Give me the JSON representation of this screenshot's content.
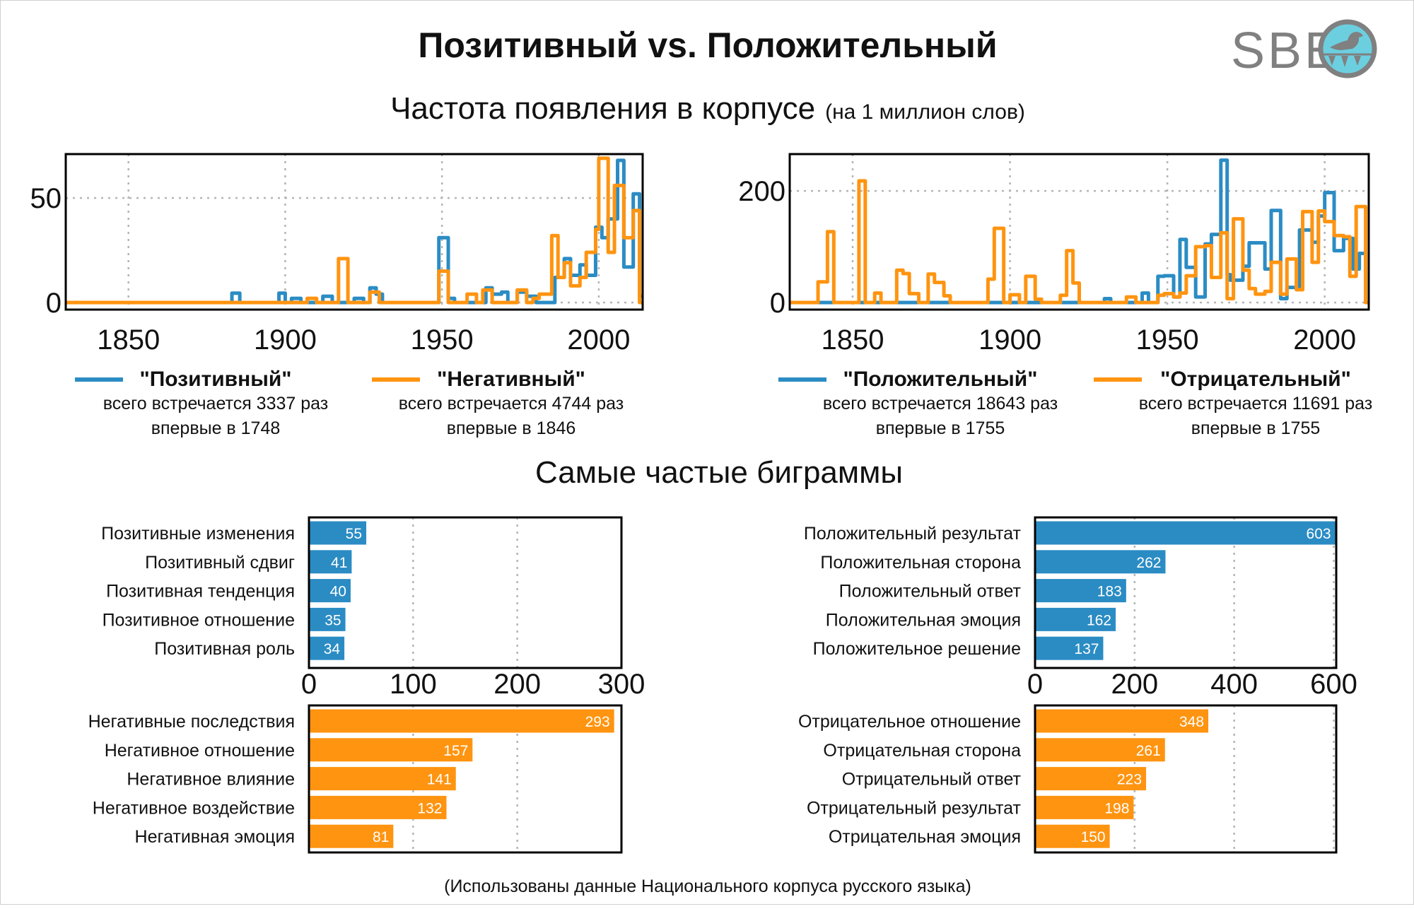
{
  "header": {
    "title": "Позитивный vs. Положительный",
    "logo_text": "SBE"
  },
  "frequency_section": {
    "title": "Частота появления в корпусе",
    "title_note": "(на 1 миллион слов)"
  },
  "bigram_section": {
    "title": "Самые частые биграммы"
  },
  "footer": "(Использованы данные Национального корпуса русского языка)",
  "colors": {
    "blue": "#2b8cc4",
    "orange": "#ff9410",
    "logo_gray": "#808080",
    "logo_cyan": "#6ccfe0"
  },
  "chart_data": [
    {
      "type": "line",
      "step": true,
      "xlim": [
        1830,
        2014
      ],
      "ylim": [
        0,
        71
      ],
      "xticks": [
        "1850",
        "1900",
        "1950",
        "2000"
      ],
      "xtick_values": [
        1850,
        1900,
        1950,
        2000
      ],
      "yticks": [
        "0",
        "50"
      ],
      "ytick_values": [
        0,
        50
      ],
      "grid": true,
      "x_end": 2014,
      "legend": [
        {
          "name": "\"Позитивный\"",
          "line1": "всего встречается 3337 раз",
          "line2": "впервые в 1748"
        },
        {
          "name": "\"Негативный\"",
          "line1": "всего встречается 4744 раз",
          "line2": "впервые в 1846"
        }
      ],
      "series": [
        {
          "name": "Позитивный",
          "color": "blue",
          "steps": [
            [
              1830,
              0
            ],
            [
              1883,
              4.5
            ],
            [
              1885.5,
              0
            ],
            [
              1898,
              4.5
            ],
            [
              1900,
              0
            ],
            [
              1902,
              2
            ],
            [
              1905,
              0
            ],
            [
              1912,
              3
            ],
            [
              1915,
              0
            ],
            [
              1922,
              2
            ],
            [
              1925,
              0
            ],
            [
              1927,
              7
            ],
            [
              1929,
              4
            ],
            [
              1931,
              0
            ],
            [
              1949,
              31
            ],
            [
              1952,
              2
            ],
            [
              1954,
              0
            ],
            [
              1964,
              7
            ],
            [
              1966,
              4
            ],
            [
              1969,
              5
            ],
            [
              1971,
              0
            ],
            [
              1974,
              5
            ],
            [
              1977,
              3
            ],
            [
              1980,
              0
            ],
            [
              1986,
              12
            ],
            [
              1989,
              21
            ],
            [
              1991,
              13
            ],
            [
              1994,
              18
            ],
            [
              1996,
              13
            ],
            [
              1999,
              36
            ],
            [
              2001,
              31
            ],
            [
              2003,
              40
            ],
            [
              2006,
              68
            ],
            [
              2008,
              17
            ],
            [
              2011,
              52
            ],
            [
              2013,
              3
            ]
          ]
        },
        {
          "name": "Негативный",
          "color": "orange",
          "steps": [
            [
              1830,
              0
            ],
            [
              1907,
              2
            ],
            [
              1910,
              0
            ],
            [
              1917,
              21
            ],
            [
              1920,
              0
            ],
            [
              1927,
              5
            ],
            [
              1930,
              0
            ],
            [
              1949,
              15
            ],
            [
              1952,
              0
            ],
            [
              1958,
              4
            ],
            [
              1961,
              0
            ],
            [
              1963,
              6
            ],
            [
              1966,
              0
            ],
            [
              1974,
              6
            ],
            [
              1977,
              0
            ],
            [
              1979,
              2
            ],
            [
              1981,
              4
            ],
            [
              1985,
              32
            ],
            [
              1987,
              12
            ],
            [
              1989,
              19
            ],
            [
              1991,
              8
            ],
            [
              1994,
              12
            ],
            [
              1996,
              24
            ],
            [
              1999,
              35
            ],
            [
              2000,
              69
            ],
            [
              2003,
              24
            ],
            [
              2005,
              56
            ],
            [
              2008,
              31
            ],
            [
              2011,
              44
            ],
            [
              2013,
              0
            ]
          ]
        }
      ]
    },
    {
      "type": "line",
      "step": true,
      "xlim": [
        1830,
        2014
      ],
      "ylim": [
        0,
        266
      ],
      "xticks": [
        "1850",
        "1900",
        "1950",
        "2000"
      ],
      "xtick_values": [
        1850,
        1900,
        1950,
        2000
      ],
      "yticks": [
        "0",
        "200"
      ],
      "ytick_values": [
        0,
        200
      ],
      "grid": true,
      "x_end": 2014,
      "legend": [
        {
          "name": "\"Положительный\"",
          "line1": "всего встречается 18643 раз",
          "line2": "впервые в 1755"
        },
        {
          "name": "\"Отрицательный\"",
          "line1": "всего встречается 11691 раз",
          "line2": "впервые в 1755"
        }
      ],
      "series": [
        {
          "name": "Положительный",
          "color": "blue",
          "steps": [
            [
              1830,
              0
            ],
            [
              1930,
              7
            ],
            [
              1932,
              0
            ],
            [
              1942,
              17
            ],
            [
              1944,
              0
            ],
            [
              1947,
              47
            ],
            [
              1949,
              48
            ],
            [
              1952,
              10
            ],
            [
              1954,
              113
            ],
            [
              1956,
              63
            ],
            [
              1959,
              10
            ],
            [
              1962,
              105
            ],
            [
              1964,
              122
            ],
            [
              1967,
              255
            ],
            [
              1969,
              50
            ],
            [
              1970,
              40
            ],
            [
              1974,
              65
            ],
            [
              1976,
              107
            ],
            [
              1981,
              60
            ],
            [
              1983,
              165
            ],
            [
              1986,
              7
            ],
            [
              1988,
              27
            ],
            [
              1992,
              130
            ],
            [
              1996,
              108
            ],
            [
              1998,
              155
            ],
            [
              2000,
              197
            ],
            [
              2003,
              93
            ],
            [
              2006,
              115
            ],
            [
              2009,
              60
            ],
            [
              2011,
              88
            ],
            [
              2013,
              0
            ]
          ]
        },
        {
          "name": "Отрицательный",
          "color": "orange",
          "steps": [
            [
              1830,
              0
            ],
            [
              1839,
              37
            ],
            [
              1842,
              127
            ],
            [
              1844,
              0
            ],
            [
              1852,
              218
            ],
            [
              1854,
              0
            ],
            [
              1857,
              17
            ],
            [
              1859,
              0
            ],
            [
              1864,
              58
            ],
            [
              1866,
              52
            ],
            [
              1868,
              16
            ],
            [
              1871,
              0
            ],
            [
              1874,
              51
            ],
            [
              1876,
              36
            ],
            [
              1879,
              12
            ],
            [
              1881,
              0
            ],
            [
              1893,
              42
            ],
            [
              1895,
              133
            ],
            [
              1898,
              0
            ],
            [
              1900,
              14
            ],
            [
              1903,
              0
            ],
            [
              1905,
              47
            ],
            [
              1908,
              6
            ],
            [
              1910,
              0
            ],
            [
              1916,
              13
            ],
            [
              1918,
              93
            ],
            [
              1920,
              35
            ],
            [
              1922,
              0
            ],
            [
              1937,
              10
            ],
            [
              1940,
              0
            ],
            [
              1947,
              13
            ],
            [
              1949,
              16
            ],
            [
              1952,
              10
            ],
            [
              1954,
              17
            ],
            [
              1956,
              48
            ],
            [
              1959,
              100
            ],
            [
              1962,
              102
            ],
            [
              1964,
              45
            ],
            [
              1967,
              125
            ],
            [
              1969,
              7
            ],
            [
              1971,
              150
            ],
            [
              1974,
              58
            ],
            [
              1976,
              25
            ],
            [
              1978,
              15
            ],
            [
              1981,
              20
            ],
            [
              1983,
              72
            ],
            [
              1986,
              15
            ],
            [
              1988,
              78
            ],
            [
              1991,
              23
            ],
            [
              1993,
              163
            ],
            [
              1996,
              72
            ],
            [
              1998,
              164
            ],
            [
              2000,
              145
            ],
            [
              2003,
              120
            ],
            [
              2006,
              118
            ],
            [
              2008,
              47
            ],
            [
              2010,
              172
            ],
            [
              2013,
              0
            ]
          ]
        }
      ]
    },
    {
      "type": "bar",
      "orientation": "horizontal",
      "color": "blue",
      "xlim": [
        0,
        300
      ],
      "xticks": [
        "0",
        "100",
        "200",
        "300"
      ],
      "xtick_values": [
        0,
        100,
        200,
        300
      ],
      "categories": [
        "Позитивные изменения",
        "Позитивный сдвиг",
        "Позитивная тенденция",
        "Позитивное отношение",
        "Позитивная роль"
      ],
      "values": [
        55,
        41,
        40,
        35,
        34
      ]
    },
    {
      "type": "bar",
      "orientation": "horizontal",
      "color": "orange",
      "xlim": [
        0,
        300
      ],
      "xtick_values": [
        100,
        200
      ],
      "categories": [
        "Негативные последствия",
        "Негативное отношение",
        "Негативное влияние",
        "Негативное воздействие",
        "Негативная эмоция"
      ],
      "values": [
        293,
        157,
        141,
        132,
        81
      ]
    },
    {
      "type": "bar",
      "orientation": "horizontal",
      "color": "blue",
      "xlim": [
        0,
        605
      ],
      "xticks": [
        "0",
        "200",
        "400",
        "600"
      ],
      "xtick_values": [
        0,
        200,
        400,
        600
      ],
      "categories": [
        "Положительный результат",
        "Положительная сторона",
        "Положительный ответ",
        "Положительная эмоция",
        "Положительное решение"
      ],
      "values": [
        603,
        262,
        183,
        162,
        137
      ]
    },
    {
      "type": "bar",
      "orientation": "horizontal",
      "color": "orange",
      "xlim": [
        0,
        605
      ],
      "xtick_values": [
        200,
        400,
        600
      ],
      "categories": [
        "Отрицательное отношение",
        "Отрицательная сторона",
        "Отрицательный ответ",
        "Отрицательный результат",
        "Отрицательная эмоция"
      ],
      "values": [
        348,
        261,
        223,
        198,
        150
      ]
    }
  ]
}
